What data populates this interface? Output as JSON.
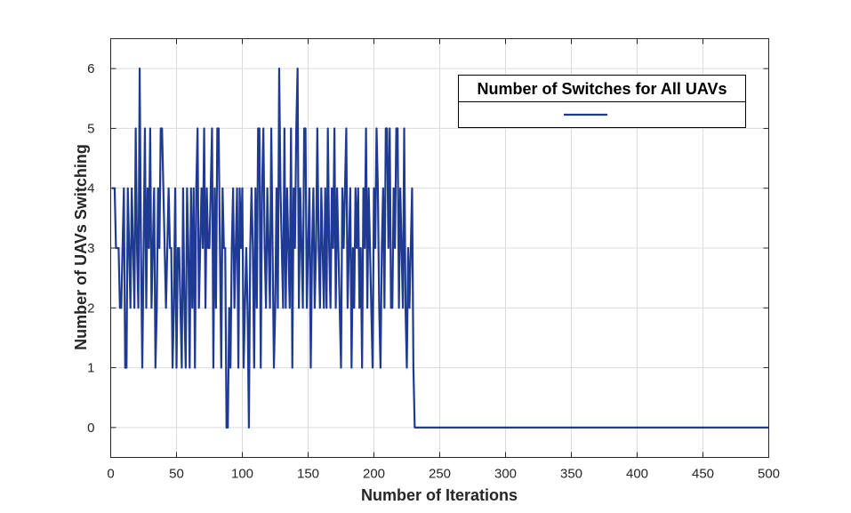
{
  "chart_data": {
    "type": "line",
    "title": "",
    "xlabel": "Number of Iterations",
    "ylabel": "Number of UAVs Switching",
    "xlim": [
      0,
      500
    ],
    "ylim": [
      -0.5,
      6.5
    ],
    "x_ticks": [
      0,
      50,
      100,
      150,
      200,
      250,
      300,
      350,
      400,
      450,
      500
    ],
    "y_ticks": [
      0,
      1,
      2,
      3,
      4,
      5,
      6
    ],
    "grid": true,
    "legend": {
      "title": "Number of Switches for All UAVs",
      "placement": "top-right"
    },
    "colors": {
      "line": "#1f3a93",
      "grid": "#dcdcdc",
      "axes": "#262626"
    },
    "series": [
      {
        "x_start": 1,
        "x_step": 1,
        "values": [
          4,
          4,
          4,
          3,
          3,
          3,
          2,
          2,
          3,
          4,
          1,
          1,
          4,
          3,
          2,
          4,
          3,
          2,
          5,
          3,
          2,
          6,
          3,
          1,
          3,
          5,
          2,
          4,
          3,
          5,
          2,
          3,
          4,
          1,
          2,
          4,
          3,
          5,
          5,
          4,
          3,
          2,
          3,
          4,
          3,
          3,
          1,
          2,
          4,
          1,
          3,
          3,
          2,
          1,
          4,
          2,
          1,
          4,
          3,
          1,
          4,
          2,
          4,
          1,
          4,
          5,
          2,
          3,
          4,
          3,
          5,
          2,
          4,
          3,
          3,
          4,
          5,
          1,
          4,
          2,
          5,
          5,
          3,
          1,
          4,
          3,
          3,
          0,
          0,
          2,
          1,
          3,
          4,
          2,
          3,
          4,
          1,
          4,
          3,
          4,
          1,
          2,
          3,
          2,
          0,
          3,
          4,
          3,
          1,
          4,
          2,
          5,
          5,
          1,
          4,
          5,
          3,
          2,
          4,
          3,
          2,
          5,
          3,
          1,
          2,
          4,
          2,
          6,
          4,
          3,
          2,
          5,
          2,
          4,
          3,
          2,
          5,
          1,
          4,
          3,
          5,
          6,
          2,
          4,
          3,
          2,
          5,
          5,
          2,
          3,
          4,
          1,
          3,
          4,
          2,
          3,
          5,
          3,
          2,
          4,
          3,
          2,
          4,
          2,
          5,
          3,
          2,
          4,
          3,
          5,
          2,
          4,
          3,
          2,
          1,
          4,
          3,
          4,
          5,
          2,
          3,
          4,
          1,
          3,
          2,
          4,
          3,
          4,
          2,
          3,
          1,
          4,
          3,
          5,
          2,
          4,
          3,
          2,
          1,
          4,
          3,
          5,
          4,
          2,
          1,
          3,
          4,
          2,
          5,
          5,
          3,
          5,
          2,
          2,
          4,
          3,
          5,
          5,
          2,
          4,
          3,
          2,
          5,
          2,
          1,
          3,
          2,
          3,
          4,
          1,
          0,
          0,
          0,
          0,
          0,
          0,
          0,
          0,
          0,
          0,
          0,
          0,
          0,
          0,
          0,
          0,
          0,
          0,
          0,
          0,
          0,
          0,
          0,
          0,
          0,
          0,
          0,
          0,
          0,
          0,
          0,
          0,
          0,
          0,
          0,
          0,
          0,
          0,
          0,
          0,
          0,
          0,
          0,
          0,
          0,
          0,
          0,
          0,
          0,
          0,
          0,
          0,
          0,
          0,
          0,
          0,
          0,
          0,
          0,
          0,
          0,
          0,
          0,
          0,
          0,
          0,
          0,
          0,
          0,
          0,
          0,
          0,
          0,
          0,
          0,
          0,
          0,
          0,
          0,
          0,
          0,
          0,
          0,
          0,
          0,
          0,
          0,
          0,
          0,
          0,
          0,
          0,
          0,
          0,
          0,
          0,
          0,
          0,
          0,
          0,
          0,
          0,
          0,
          0,
          0,
          0,
          0,
          0,
          0,
          0,
          0,
          0,
          0,
          0,
          0,
          0,
          0,
          0,
          0,
          0,
          0,
          0,
          0,
          0,
          0,
          0,
          0,
          0,
          0,
          0,
          0,
          0,
          0,
          0,
          0,
          0,
          0,
          0,
          0,
          0,
          0,
          0,
          0,
          0,
          0,
          0,
          0,
          0,
          0,
          0,
          0,
          0,
          0,
          0,
          0,
          0,
          0,
          0,
          0,
          0,
          0,
          0,
          0,
          0,
          0,
          0,
          0,
          0,
          0,
          0,
          0,
          0,
          0,
          0,
          0,
          0,
          0,
          0,
          0,
          0,
          0,
          0,
          0,
          0,
          0,
          0,
          0,
          0,
          0,
          0,
          0,
          0,
          0,
          0,
          0,
          0,
          0,
          0,
          0,
          0,
          0,
          0,
          0,
          0,
          0,
          0,
          0,
          0,
          0,
          0,
          0,
          0,
          0,
          0,
          0,
          0,
          0,
          0,
          0,
          0,
          0,
          0,
          0,
          0,
          0,
          0,
          0,
          0,
          0,
          0,
          0,
          0,
          0,
          0,
          0,
          0,
          0,
          0,
          0,
          0,
          0,
          0,
          0,
          0,
          0,
          0,
          0,
          0,
          0,
          0,
          0,
          0,
          0,
          0,
          0,
          0,
          0,
          0,
          0,
          0,
          0,
          0,
          0,
          0,
          0,
          0,
          0,
          0,
          0,
          0
        ]
      }
    ]
  }
}
